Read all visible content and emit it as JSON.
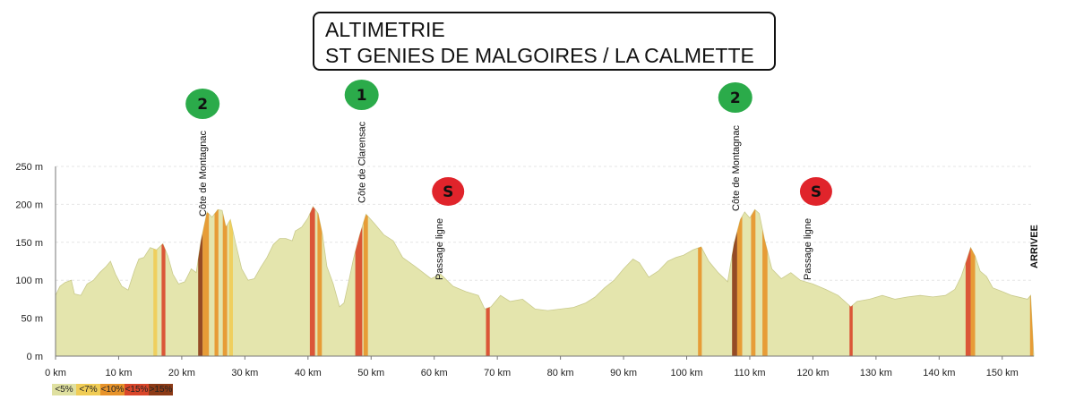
{
  "title": {
    "line1": "ALTIMETRIE",
    "line2": "ST GENIES DE MALGOIRES / LA CALMETTE"
  },
  "chart_data": {
    "type": "area",
    "x_unit": "km",
    "y_unit": "m",
    "xlim": [
      0,
      155
    ],
    "ylim": [
      0,
      250
    ],
    "x_ticks": [
      "0 km",
      "10 km",
      "20 km",
      "30 km",
      "40 km",
      "50 km",
      "60 km",
      "70 km",
      "80 km",
      "90 km",
      "100 km",
      "110 km",
      "120 km",
      "130 km",
      "140 km",
      "150 km"
    ],
    "y_ticks": [
      "0 m",
      "50 m",
      "100 m",
      "150 m",
      "200 m",
      "250 m"
    ],
    "profile": [
      [
        0,
        80
      ],
      [
        0.7,
        92
      ],
      [
        1.5,
        97
      ],
      [
        2.5,
        100
      ],
      [
        3,
        82
      ],
      [
        4,
        80
      ],
      [
        5,
        95
      ],
      [
        6,
        100
      ],
      [
        7,
        110
      ],
      [
        8,
        118
      ],
      [
        8.7,
        125
      ],
      [
        9.5,
        108
      ],
      [
        10.5,
        92
      ],
      [
        11.5,
        87
      ],
      [
        12.5,
        113
      ],
      [
        13.2,
        128
      ],
      [
        14,
        130
      ],
      [
        15,
        143
      ],
      [
        16,
        140
      ],
      [
        17,
        148
      ],
      [
        17.8,
        132
      ],
      [
        18.6,
        108
      ],
      [
        19.5,
        95
      ],
      [
        20.5,
        98
      ],
      [
        21.5,
        115
      ],
      [
        22.3,
        110
      ],
      [
        23,
        150
      ],
      [
        24,
        190
      ],
      [
        24.8,
        183
      ],
      [
        25.7,
        193
      ],
      [
        26.4,
        192
      ],
      [
        27,
        170
      ],
      [
        27.7,
        180
      ],
      [
        28.5,
        150
      ],
      [
        29.5,
        115
      ],
      [
        30.5,
        100
      ],
      [
        31.5,
        102
      ],
      [
        32.5,
        117
      ],
      [
        33.5,
        130
      ],
      [
        34.5,
        147
      ],
      [
        35.5,
        155
      ],
      [
        36.5,
        155
      ],
      [
        37.5,
        152
      ],
      [
        38,
        165
      ],
      [
        39,
        170
      ],
      [
        40,
        182
      ],
      [
        40.8,
        197
      ],
      [
        41.6,
        188
      ],
      [
        42.3,
        160
      ],
      [
        43,
        118
      ],
      [
        44,
        95
      ],
      [
        45,
        65
      ],
      [
        45.7,
        70
      ],
      [
        46.5,
        100
      ],
      [
        47.2,
        128
      ],
      [
        48.2,
        160
      ],
      [
        49.2,
        187
      ],
      [
        50.5,
        175
      ],
      [
        52,
        160
      ],
      [
        53.5,
        152
      ],
      [
        55,
        130
      ],
      [
        57,
        118
      ],
      [
        59.5,
        102
      ],
      [
        61,
        108
      ],
      [
        63,
        92
      ],
      [
        65,
        85
      ],
      [
        67,
        80
      ],
      [
        68,
        62
      ],
      [
        69,
        65
      ],
      [
        70.5,
        80
      ],
      [
        72,
        72
      ],
      [
        74,
        75
      ],
      [
        76,
        62
      ],
      [
        78,
        60
      ],
      [
        80,
        62
      ],
      [
        82,
        64
      ],
      [
        84,
        70
      ],
      [
        85.5,
        78
      ],
      [
        87,
        90
      ],
      [
        88.5,
        100
      ],
      [
        90,
        115
      ],
      [
        91.5,
        128
      ],
      [
        92.5,
        123
      ],
      [
        94,
        104
      ],
      [
        95.5,
        112
      ],
      [
        97,
        125
      ],
      [
        98.3,
        130
      ],
      [
        99.5,
        133
      ],
      [
        101,
        140
      ],
      [
        102.3,
        144
      ],
      [
        103.5,
        125
      ],
      [
        105,
        110
      ],
      [
        106.5,
        98
      ],
      [
        107.5,
        148
      ],
      [
        108.5,
        180
      ],
      [
        109.2,
        190
      ],
      [
        110,
        182
      ],
      [
        110.8,
        193
      ],
      [
        111.5,
        188
      ],
      [
        112.3,
        155
      ],
      [
        113.5,
        115
      ],
      [
        115,
        102
      ],
      [
        116.5,
        110
      ],
      [
        118,
        100
      ],
      [
        120,
        95
      ],
      [
        122,
        88
      ],
      [
        124,
        80
      ],
      [
        126,
        65
      ],
      [
        127,
        72
      ],
      [
        129,
        75
      ],
      [
        131,
        80
      ],
      [
        133,
        75
      ],
      [
        135,
        78
      ],
      [
        137,
        80
      ],
      [
        139,
        78
      ],
      [
        141,
        80
      ],
      [
        142.5,
        88
      ],
      [
        143.5,
        105
      ],
      [
        144.5,
        130
      ],
      [
        145,
        143
      ],
      [
        145.7,
        132
      ],
      [
        146.5,
        112
      ],
      [
        147.5,
        105
      ],
      [
        148.5,
        90
      ],
      [
        150,
        85
      ],
      [
        151.5,
        80
      ],
      [
        153,
        77
      ],
      [
        154,
        75
      ],
      [
        154.5,
        80
      ],
      [
        155,
        0
      ]
    ],
    "steep_segments": [
      {
        "from": 22.6,
        "to": 23.3,
        "grade": ">15%"
      },
      {
        "from": 23.3,
        "to": 24.3,
        "grade": "<10%"
      },
      {
        "from": 25.2,
        "to": 25.8,
        "grade": "<10%"
      },
      {
        "from": 26.5,
        "to": 27.2,
        "grade": "<10%"
      },
      {
        "from": 27.5,
        "to": 28.1,
        "grade": "<7%"
      },
      {
        "from": 16.8,
        "to": 17.4,
        "grade": "<15%"
      },
      {
        "from": 15.5,
        "to": 16.1,
        "grade": "<7%"
      },
      {
        "from": 40.3,
        "to": 41.1,
        "grade": "<15%"
      },
      {
        "from": 41.5,
        "to": 42.2,
        "grade": "<10%"
      },
      {
        "from": 47.5,
        "to": 48.6,
        "grade": "<15%"
      },
      {
        "from": 48.8,
        "to": 49.5,
        "grade": "<10%"
      },
      {
        "from": 68.2,
        "to": 68.8,
        "grade": "<15%"
      },
      {
        "from": 107.2,
        "to": 108,
        "grade": ">15%"
      },
      {
        "from": 108,
        "to": 108.8,
        "grade": "<10%"
      },
      {
        "from": 110.2,
        "to": 110.9,
        "grade": "<10%"
      },
      {
        "from": 112,
        "to": 112.8,
        "grade": "<10%"
      },
      {
        "from": 101.8,
        "to": 102.4,
        "grade": "<10%"
      },
      {
        "from": 125.8,
        "to": 126.3,
        "grade": "<15%"
      },
      {
        "from": 144.2,
        "to": 145,
        "grade": "<15%"
      },
      {
        "from": 145,
        "to": 145.7,
        "grade": "<10%"
      },
      {
        "from": 154.4,
        "to": 154.9,
        "grade": "<10%"
      }
    ],
    "climbs": [
      {
        "km": 23.3,
        "name": "Côte de Montagnac",
        "category": "2"
      },
      {
        "km": 48.5,
        "name": "Côte de Clarensac",
        "category": "1"
      },
      {
        "km": 107.7,
        "name": "Côte de Montagnac",
        "category": "2"
      }
    ],
    "sprints": [
      {
        "km": 62.2,
        "name": "Passage ligne",
        "symbol": "S"
      },
      {
        "km": 120.5,
        "name": "Passage ligne",
        "symbol": "S"
      }
    ],
    "finish_label": "ARRIVEE",
    "grade_colors": {
      "<5%": "#dfe0a0",
      "<7%": "#f0cc55",
      "<10%": "#e7932a",
      "<15%": "#d9462a",
      ">15%": "#8c3a16"
    },
    "profile_color": "#e4e5ad",
    "badge_colors": {
      "climb": "#2bab4a",
      "sprint": "#e0242b"
    }
  },
  "legend": [
    {
      "label": "<5%",
      "color": "#dfe0a0"
    },
    {
      "label": "<7%",
      "color": "#f0cc55"
    },
    {
      "label": "<10%",
      "color": "#e7932a"
    },
    {
      "label": "<15%",
      "color": "#d9462a"
    },
    {
      "label": ">15%",
      "color": "#8c3a16"
    }
  ]
}
